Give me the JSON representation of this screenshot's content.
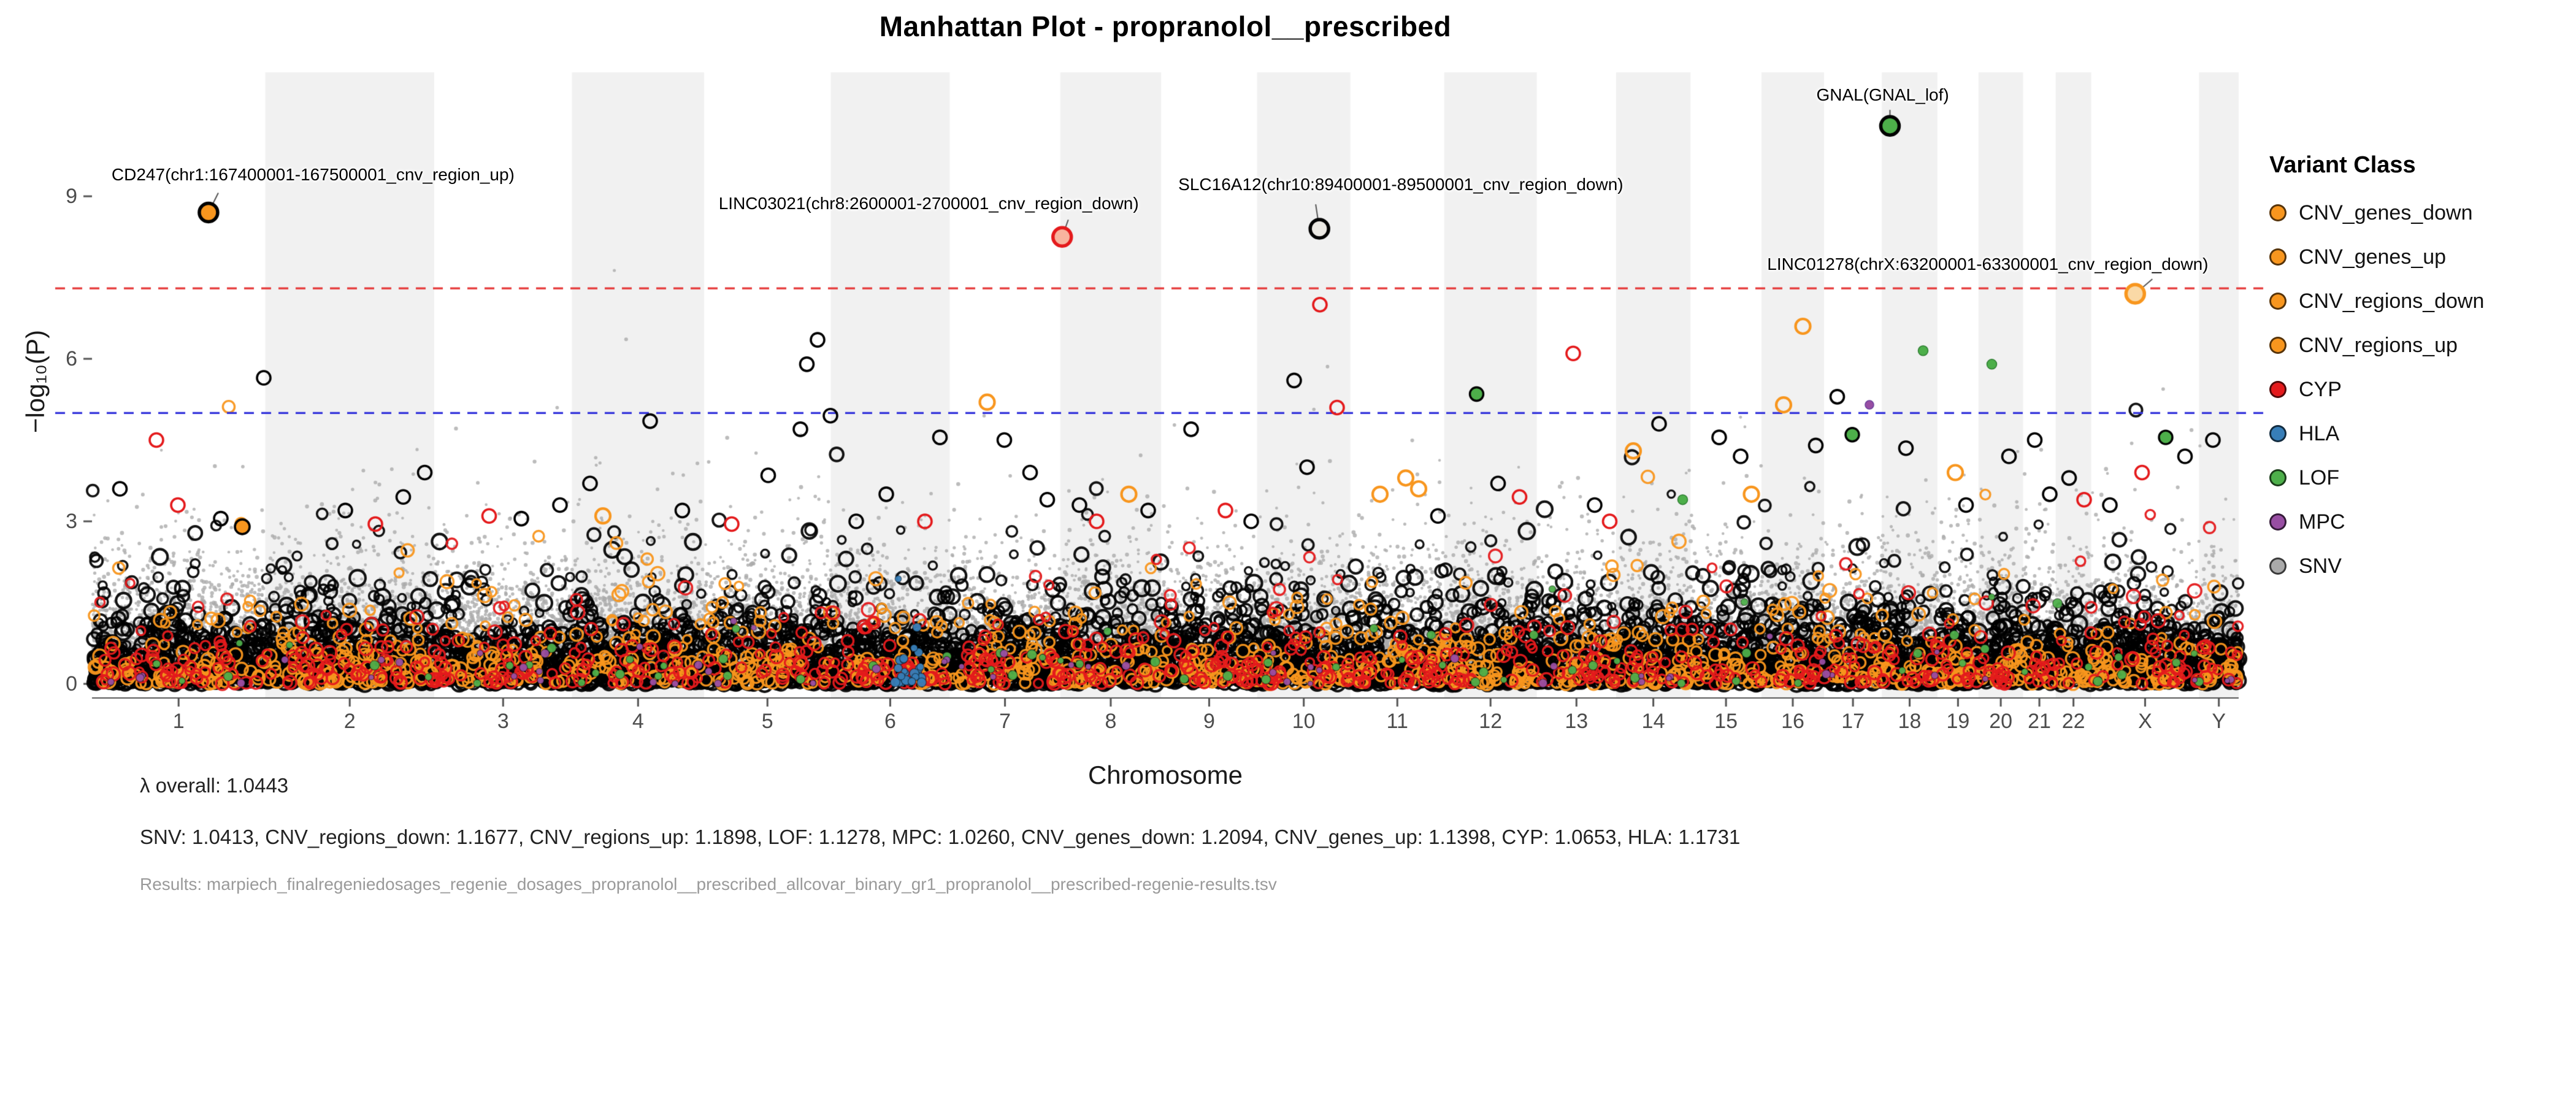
{
  "title": "Manhattan Plot - propranolol__prescribed",
  "legend": {
    "title": "Variant Class",
    "items": [
      {
        "label": "CNV_genes_down",
        "color": "#F8961E"
      },
      {
        "label": "CNV_genes_up",
        "color": "#F8961E"
      },
      {
        "label": "CNV_regions_down",
        "color": "#F8961E"
      },
      {
        "label": "CNV_regions_up",
        "color": "#F8961E"
      },
      {
        "label": "CYP",
        "color": "#E41A1C"
      },
      {
        "label": "HLA",
        "color": "#377EB8"
      },
      {
        "label": "LOF",
        "color": "#4DAF4A"
      },
      {
        "label": "MPC",
        "color": "#984EA3"
      },
      {
        "label": "SNV",
        "color": "#AAAAAA"
      }
    ]
  },
  "stats": {
    "lambda_overall": "λ overall: 1.0443",
    "lambda_by_class": "SNV: 1.0413, CNV_regions_down: 1.1677, CNV_regions_up: 1.1898, LOF: 1.1278, MPC: 1.0260, CNV_genes_down: 1.2094, CNV_genes_up: 1.1398, CYP: 1.0653, HLA: 1.1731",
    "results": "Results: marpiech_finalregeniedosages_regenie_dosages_propranolol__prescribed_allcovar_binary_gr1_propranolol__prescribed-regenie-results.tsv"
  },
  "chart_data": {
    "type": "scatter",
    "subtype": "manhattan",
    "axes": {
      "y_label": "−log₁₀(P)",
      "x_label": "Chromosome",
      "y_ticks": [
        0,
        3,
        6,
        9
      ],
      "y_range": [
        0,
        11.2
      ],
      "grid": false
    },
    "thresholds": {
      "genomewide": {
        "value": 7.3,
        "color": "#E63939",
        "style": "dashed"
      },
      "suggestive": {
        "value": 5.0,
        "color": "#3434DB",
        "style": "dashed"
      }
    },
    "chromosomes": [
      {
        "name": "1",
        "mb": 249
      },
      {
        "name": "2",
        "mb": 243
      },
      {
        "name": "3",
        "mb": 198
      },
      {
        "name": "4",
        "mb": 190
      },
      {
        "name": "5",
        "mb": 182
      },
      {
        "name": "6",
        "mb": 171
      },
      {
        "name": "7",
        "mb": 159
      },
      {
        "name": "8",
        "mb": 145
      },
      {
        "name": "9",
        "mb": 138
      },
      {
        "name": "10",
        "mb": 134
      },
      {
        "name": "11",
        "mb": 135
      },
      {
        "name": "12",
        "mb": 133
      },
      {
        "name": "13",
        "mb": 114
      },
      {
        "name": "14",
        "mb": 107
      },
      {
        "name": "15",
        "mb": 102
      },
      {
        "name": "16",
        "mb": 90
      },
      {
        "name": "17",
        "mb": 83
      },
      {
        "name": "18",
        "mb": 80
      },
      {
        "name": "19",
        "mb": 59
      },
      {
        "name": "20",
        "mb": 64
      },
      {
        "name": "21",
        "mb": 47
      },
      {
        "name": "22",
        "mb": 51
      },
      {
        "name": "X",
        "mb": 155
      },
      {
        "name": "Y",
        "mb": 57
      }
    ],
    "colors": {
      "orange": "#F8961E",
      "red": "#E41A1C",
      "blue": "#377EB8",
      "green": "#4DAF4A",
      "purple": "#984EA3",
      "snv": "#ABABAB",
      "black": "#000000",
      "band": "#F1F1F1",
      "axis": "#555555"
    },
    "annotations": [
      {
        "label": "CD247(chr1:167400001-167500001_cnv_region_up)",
        "chr": "1",
        "pos_mb": 167.45,
        "p": 8.7,
        "ring": "#000000",
        "fill": "#F8961E"
      },
      {
        "label": "LINC03021(chr8:2600001-2700001_cnv_region_down)",
        "chr": "8",
        "pos_mb": 2.65,
        "p": 8.25,
        "ring": "#E41A1C",
        "fill": "#F8B49E"
      },
      {
        "label": "SLC16A12(chr10:89400001-89500001_cnv_region_down)",
        "chr": "10",
        "pos_mb": 89.45,
        "p": 8.4,
        "ring": "#000000",
        "fill": "#ECE9E4"
      },
      {
        "label": "GNAL(GNAL_lof)",
        "chr": "18",
        "pos_mb": 11.7,
        "p": 10.3,
        "ring": "#000000",
        "fill": "#4DAF4A"
      },
      {
        "label": "LINC01278(chrX:63200001-63300001_cnv_region_down)",
        "chr": "X",
        "pos_mb": 63.25,
        "p": 7.2,
        "ring": "#F8961E",
        "fill": "#FAD9A6"
      }
    ],
    "point_styles": {
      "b": {
        "stroke": "#000000",
        "fill": null,
        "r": 11,
        "lw": 3.6
      },
      "r": {
        "stroke": "#E41A1C",
        "fill": null,
        "r": 11,
        "lw": 3.6
      },
      "o": {
        "stroke": "#F8961E",
        "fill": null,
        "r": 12,
        "lw": 4.2
      },
      "ob": {
        "stroke": "#000000",
        "fill": "#F8961E",
        "r": 12,
        "lw": 3.6
      },
      "gb": {
        "stroke": "#000000",
        "fill": "#4DAF4A",
        "r": 11,
        "lw": 3.4
      },
      "g": {
        "stroke": "#2E7D32",
        "fill": "#4DAF4A",
        "r": 8,
        "lw": 1.5
      },
      "p": {
        "stroke": "#6A3D9A",
        "fill": "#984EA3",
        "r": 7,
        "lw": 1.5
      }
    },
    "highlights": [
      {
        "f": 0.013,
        "p": 3.6,
        "c": "b"
      },
      {
        "f": 0.03,
        "p": 4.5,
        "c": "r"
      },
      {
        "f": 0.04,
        "p": 3.3,
        "c": "r"
      },
      {
        "f": 0.06,
        "p": 3.05,
        "c": "b"
      },
      {
        "f": 0.07,
        "p": 2.9,
        "c": "ob"
      },
      {
        "f": 0.08,
        "p": 5.65,
        "c": "b"
      },
      {
        "f": 0.118,
        "p": 3.2,
        "c": "b"
      },
      {
        "f": 0.132,
        "p": 2.95,
        "c": "r"
      },
      {
        "f": 0.145,
        "p": 3.45,
        "c": "b"
      },
      {
        "f": 0.155,
        "p": 3.9,
        "c": "b"
      },
      {
        "f": 0.185,
        "p": 3.1,
        "c": "r"
      },
      {
        "f": 0.2,
        "p": 3.05,
        "c": "b"
      },
      {
        "f": 0.218,
        "p": 3.3,
        "c": "b"
      },
      {
        "f": 0.232,
        "p": 3.7,
        "c": "b"
      },
      {
        "f": 0.238,
        "p": 3.1,
        "c": "o"
      },
      {
        "f": 0.26,
        "p": 4.85,
        "c": "b"
      },
      {
        "f": 0.275,
        "p": 3.2,
        "c": "b"
      },
      {
        "f": 0.298,
        "p": 2.95,
        "c": "r"
      },
      {
        "f": 0.315,
        "p": 3.85,
        "c": "b"
      },
      {
        "f": 0.33,
        "p": 4.7,
        "c": "b"
      },
      {
        "f": 0.333,
        "p": 5.9,
        "c": "b"
      },
      {
        "f": 0.338,
        "p": 6.35,
        "c": "b"
      },
      {
        "f": 0.344,
        "p": 4.95,
        "c": "b"
      },
      {
        "f": 0.356,
        "p": 3.0,
        "c": "b"
      },
      {
        "f": 0.37,
        "p": 3.5,
        "c": "b"
      },
      {
        "f": 0.388,
        "p": 3.0,
        "c": "r"
      },
      {
        "f": 0.395,
        "p": 4.55,
        "c": "b"
      },
      {
        "f": 0.417,
        "p": 5.2,
        "c": "o"
      },
      {
        "f": 0.425,
        "p": 4.5,
        "c": "b"
      },
      {
        "f": 0.437,
        "p": 3.9,
        "c": "b"
      },
      {
        "f": 0.445,
        "p": 3.4,
        "c": "b"
      },
      {
        "f": 0.46,
        "p": 3.3,
        "c": "b"
      },
      {
        "f": 0.468,
        "p": 3.0,
        "c": "r"
      },
      {
        "f": 0.483,
        "p": 3.5,
        "c": "o"
      },
      {
        "f": 0.492,
        "p": 3.2,
        "c": "b"
      },
      {
        "f": 0.512,
        "p": 4.7,
        "c": "b"
      },
      {
        "f": 0.528,
        "p": 3.2,
        "c": "r"
      },
      {
        "f": 0.54,
        "p": 3.0,
        "c": "b"
      },
      {
        "f": 0.56,
        "p": 5.6,
        "c": "b"
      },
      {
        "f": 0.566,
        "p": 4.0,
        "c": "b"
      },
      {
        "f": 0.572,
        "p": 7.0,
        "c": "r"
      },
      {
        "f": 0.58,
        "p": 5.1,
        "c": "r"
      },
      {
        "f": 0.6,
        "p": 3.5,
        "c": "o"
      },
      {
        "f": 0.612,
        "p": 3.8,
        "c": "o"
      },
      {
        "f": 0.618,
        "p": 3.6,
        "c": "o"
      },
      {
        "f": 0.627,
        "p": 3.1,
        "c": "b"
      },
      {
        "f": 0.645,
        "p": 5.35,
        "c": "gb"
      },
      {
        "f": 0.655,
        "p": 3.7,
        "c": "b"
      },
      {
        "f": 0.665,
        "p": 3.45,
        "c": "r"
      },
      {
        "f": 0.69,
        "p": 6.1,
        "c": "r"
      },
      {
        "f": 0.7,
        "p": 3.3,
        "c": "b"
      },
      {
        "f": 0.707,
        "p": 3.0,
        "c": "r"
      },
      {
        "f": 0.718,
        "p": 4.3,
        "c": "o"
      },
      {
        "f": 0.73,
        "p": 4.8,
        "c": "b"
      },
      {
        "f": 0.741,
        "p": 3.4,
        "c": "g"
      },
      {
        "f": 0.758,
        "p": 4.55,
        "c": "b"
      },
      {
        "f": 0.768,
        "p": 4.2,
        "c": "b"
      },
      {
        "f": 0.773,
        "p": 3.5,
        "c": "o"
      },
      {
        "f": 0.788,
        "p": 5.15,
        "c": "o"
      },
      {
        "f": 0.797,
        "p": 6.6,
        "c": "o"
      },
      {
        "f": 0.803,
        "p": 4.4,
        "c": "b"
      },
      {
        "f": 0.813,
        "p": 5.3,
        "c": "b"
      },
      {
        "f": 0.82,
        "p": 4.6,
        "c": "gb"
      },
      {
        "f": 0.828,
        "p": 5.15,
        "c": "p"
      },
      {
        "f": 0.845,
        "p": 4.35,
        "c": "b"
      },
      {
        "f": 0.853,
        "p": 6.15,
        "c": "g"
      },
      {
        "f": 0.868,
        "p": 3.9,
        "c": "o"
      },
      {
        "f": 0.873,
        "p": 3.3,
        "c": "b"
      },
      {
        "f": 0.885,
        "p": 5.9,
        "c": "g"
      },
      {
        "f": 0.893,
        "p": 4.2,
        "c": "b"
      },
      {
        "f": 0.905,
        "p": 4.5,
        "c": "b"
      },
      {
        "f": 0.912,
        "p": 3.5,
        "c": "b"
      },
      {
        "f": 0.921,
        "p": 3.8,
        "c": "b"
      },
      {
        "f": 0.928,
        "p": 3.4,
        "c": "r"
      },
      {
        "f": 0.94,
        "p": 3.3,
        "c": "b"
      },
      {
        "f": 0.955,
        "p": 3.9,
        "c": "r"
      },
      {
        "f": 0.966,
        "p": 4.55,
        "c": "gb"
      },
      {
        "f": 0.975,
        "p": 4.2,
        "c": "b"
      },
      {
        "f": 0.988,
        "p": 4.5,
        "c": "b"
      }
    ],
    "background_layers": [
      {
        "class": "snv",
        "count": 45000,
        "scale": 1.3,
        "rmin": 2.2,
        "rmax": 3.4
      },
      {
        "class": "black",
        "count": 6500,
        "scale": 1.15,
        "rmin": 6,
        "rmax": 13
      },
      {
        "class": "orange",
        "count": 1200,
        "scale": 1.08,
        "rmin": 7,
        "rmax": 11
      },
      {
        "class": "red",
        "count": 700,
        "scale": 1.05,
        "rmin": 7,
        "rmax": 11
      },
      {
        "class": "green",
        "count": 70,
        "scale": 0.9,
        "rmin": 5,
        "rmax": 8
      },
      {
        "class": "purple",
        "count": 55,
        "scale": 0.85,
        "rmin": 4,
        "rmax": 7
      },
      {
        "class": "hla",
        "count": 30,
        "scale": 0.8,
        "rmin": 5,
        "rmax": 8,
        "fmin": 0.374,
        "fmax": 0.388
      }
    ]
  }
}
